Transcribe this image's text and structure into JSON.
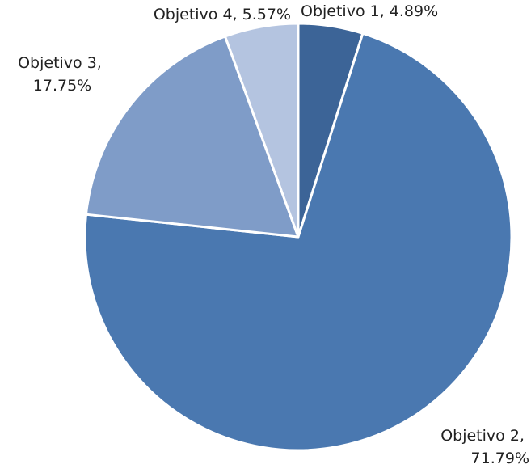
{
  "chart_data": {
    "type": "pie",
    "values": [
      4.89,
      71.79,
      17.75,
      5.57
    ],
    "value_labels": [
      "Objetivo 1, 4.89%",
      "Objetivo 2, 71.79%",
      "Objetivo 3, 17.75%",
      "Objetivo 4, 5.57%"
    ],
    "colors": [
      "#3c6497",
      "#4a78b0",
      "#7f9cc8",
      "#b4c4e0"
    ]
  }
}
